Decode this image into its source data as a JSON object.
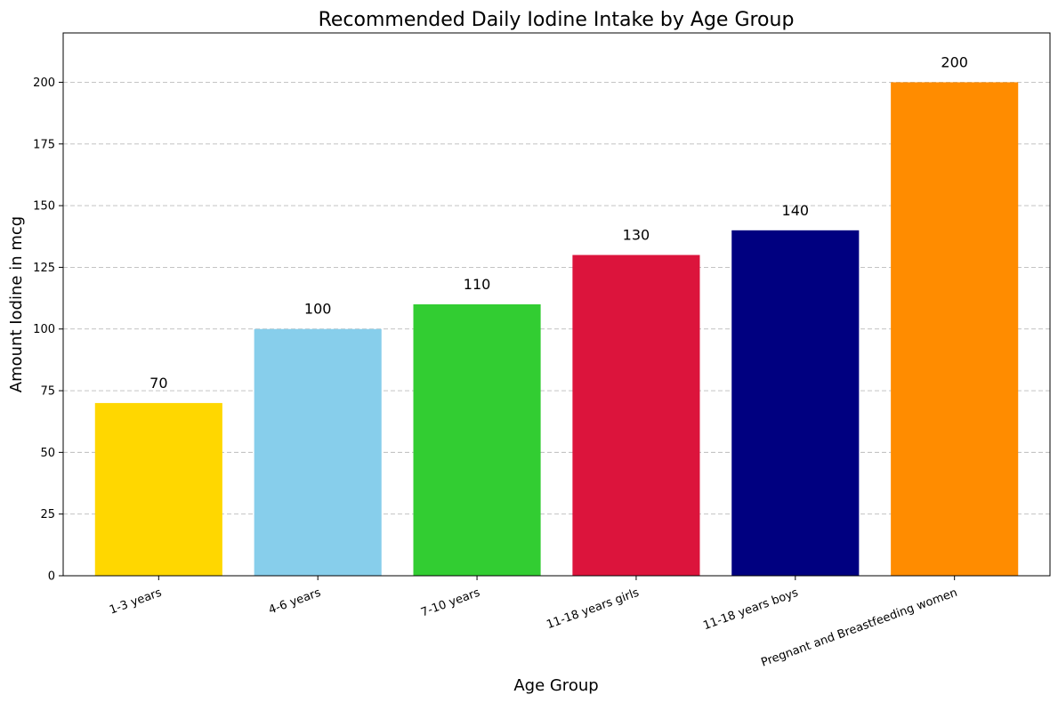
{
  "chart_data": {
    "type": "bar",
    "title": "Recommended Daily Iodine Intake by Age Group",
    "xlabel": "Age Group",
    "ylabel": "Amount Iodine in mcg",
    "categories": [
      "1-3 years",
      "4-6 years",
      "7-10 years",
      "11-18 years girls",
      "11-18 years boys",
      "Pregnant and Breastfeeding women"
    ],
    "values": [
      70,
      100,
      110,
      130,
      140,
      200
    ],
    "colors": [
      "#FFD700",
      "#87CEEB",
      "#32CD32",
      "#DC143C",
      "#000080",
      "#FF8C00"
    ],
    "ylim": [
      0,
      220
    ],
    "yticks": [
      0,
      25,
      50,
      75,
      100,
      125,
      150,
      175,
      200
    ],
    "grid": "y",
    "data_labels": [
      "70",
      "100",
      "110",
      "130",
      "140",
      "200"
    ]
  }
}
